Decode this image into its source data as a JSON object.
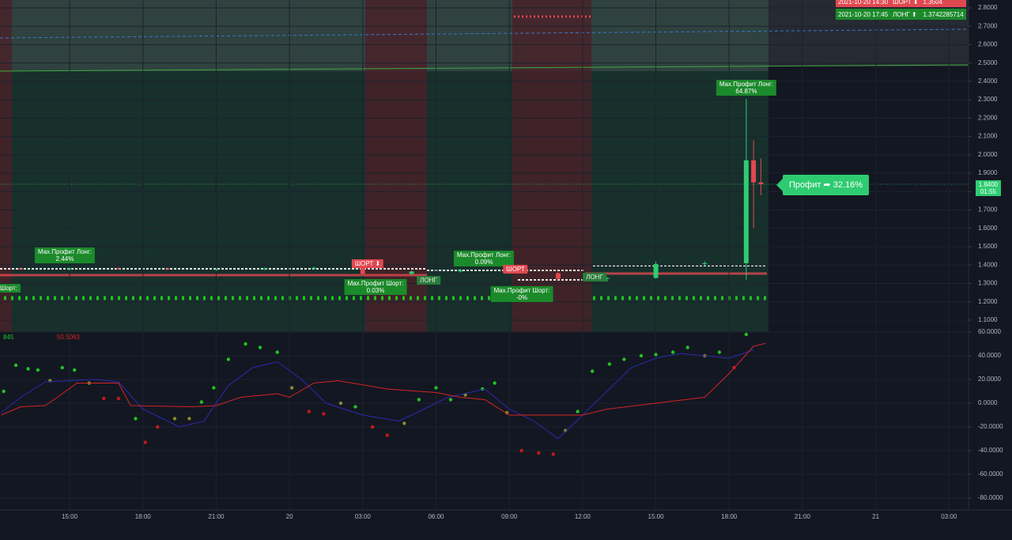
{
  "trades_table": {
    "rows": [
      [
        "2021-10-20 14:30",
        "ШОРТ ⬇",
        "1.3504"
      ],
      [
        "2021-10-20 17:45",
        "ЛОНГ ⬆",
        "1.3742285714"
      ]
    ]
  },
  "annotations": [
    {
      "lines": [
        "Max.Профит Лонг:",
        "2.44%"
      ]
    },
    {
      "lines": [
        "ШОРТ ⬇"
      ]
    },
    {
      "lines": [
        "Max.Профит Шорт:",
        "0.03%"
      ]
    },
    {
      "lines": [
        "ЛОНГ"
      ]
    },
    {
      "lines": [
        "Max.Профит Лонг:",
        "0.09%"
      ]
    },
    {
      "lines": [
        "ШОРТ"
      ]
    },
    {
      "lines": [
        "Max.Профит Шорт:",
        "-0%"
      ]
    },
    {
      "lines": [
        "ЛОНГ"
      ]
    },
    {
      "lines": [
        "Max.Профит Лонг:",
        "64.87%"
      ]
    },
    {
      "lines": [
        "Шорт:"
      ]
    }
  ],
  "profit_label": "Профит ➦ 32.16%",
  "price_tag": {
    "price": "1.8400",
    "countdown": "01:55"
  },
  "chart_data": [
    {
      "type": "candlestick",
      "x": [
        13,
        15,
        17,
        19,
        21,
        23,
        25,
        27,
        29,
        31,
        33,
        35,
        37,
        39,
        41,
        42.7,
        43.0,
        43.3
      ],
      "open": [
        1.38,
        1.378,
        1.382,
        1.38,
        1.376,
        1.378,
        1.383,
        1.385,
        1.352,
        1.365,
        1.372,
        1.355,
        1.325,
        1.33,
        1.405,
        1.41,
        1.97,
        1.85
      ],
      "high": [
        1.385,
        1.386,
        1.388,
        1.384,
        1.382,
        1.386,
        1.39,
        1.392,
        1.37,
        1.38,
        1.38,
        1.362,
        1.335,
        1.42,
        1.42,
        2.305,
        2.08,
        1.98
      ],
      "low": [
        1.372,
        1.37,
        1.376,
        1.372,
        1.368,
        1.372,
        1.376,
        1.34,
        1.345,
        1.36,
        1.35,
        1.318,
        1.31,
        1.325,
        1.395,
        1.32,
        1.6,
        1.78
      ],
      "close": [
        1.378,
        1.382,
        1.38,
        1.376,
        1.378,
        1.383,
        1.385,
        1.352,
        1.365,
        1.372,
        1.355,
        1.325,
        1.33,
        1.405,
        1.41,
        1.97,
        1.85,
        1.84
      ],
      "up_color": "#2ecc71",
      "down_color": "#e04850",
      "xlim": [
        12.15,
        51.8
      ],
      "ylim": [
        1.035,
        2.843
      ],
      "yticks": [
        {
          "value": 1.1,
          "label": "1.1000"
        },
        {
          "value": 1.2,
          "label": "1.2000"
        },
        {
          "value": 1.3,
          "label": "1.3000"
        },
        {
          "value": 1.4,
          "label": "1.4000"
        },
        {
          "value": 1.5,
          "label": "1.5000"
        },
        {
          "value": 1.6,
          "label": "1.6000"
        },
        {
          "value": 1.7,
          "label": "1.7000"
        },
        {
          "value": 1.8,
          "label": "1.8000"
        },
        {
          "value": 1.9,
          "label": "1.9000"
        },
        {
          "value": 2.0,
          "label": "2.0000"
        },
        {
          "value": 2.1,
          "label": "2.1000"
        },
        {
          "value": 2.2,
          "label": "2.2000"
        },
        {
          "value": 2.3,
          "label": "2.3000"
        },
        {
          "value": 2.4,
          "label": "2.4000"
        },
        {
          "value": 2.5,
          "label": "2.5000"
        },
        {
          "value": 2.6,
          "label": "2.6000"
        },
        {
          "value": 2.7,
          "label": "2.7000"
        },
        {
          "value": 2.8,
          "label": "2.8000"
        }
      ],
      "grid": true
    },
    {
      "type": "line",
      "xlim": [
        12.15,
        51.8
      ],
      "ylim": [
        -90,
        60
      ],
      "yticks": [
        {
          "value": 60,
          "label": "60.0000"
        },
        {
          "value": 40,
          "label": "40.0000"
        },
        {
          "value": 20,
          "label": "20.0000"
        },
        {
          "value": 0,
          "label": "0.0000"
        },
        {
          "value": -20,
          "label": "-20.0000"
        },
        {
          "value": -40,
          "label": "-40.0000"
        },
        {
          "value": -60,
          "label": "-60.0000"
        },
        {
          "value": -80,
          "label": "-80.0000"
        }
      ],
      "xticks": [
        {
          "value": 15,
          "label": "15:00"
        },
        {
          "value": 18,
          "label": "18:00"
        },
        {
          "value": 21,
          "label": "21:00"
        },
        {
          "value": 24,
          "label": "20"
        },
        {
          "value": 27,
          "label": "03:00"
        },
        {
          "value": 30,
          "label": "06:00"
        },
        {
          "value": 33,
          "label": "09:00"
        },
        {
          "value": 36,
          "label": "12:00"
        },
        {
          "value": 39,
          "label": "15:00"
        },
        {
          "value": 42,
          "label": "18:00"
        },
        {
          "value": 45,
          "label": "21:00"
        },
        {
          "value": 48,
          "label": "21"
        },
        {
          "value": 51,
          "label": "03:00"
        }
      ],
      "grid": true,
      "series": [
        {
          "name": "845",
          "color": "#22c322",
          "style": "dots",
          "x": [
            12.3,
            12.8,
            13.3,
            13.7,
            14.7,
            15.2,
            17.7,
            20.4,
            20.9,
            21.5,
            22.2,
            22.8,
            23.5,
            26.7,
            29.3,
            30.0,
            30.6,
            31.9,
            32.4,
            35.8,
            36.4,
            37.1,
            37.7,
            38.4,
            39.0,
            39.7,
            40.3,
            41.6,
            42.7
          ],
          "values": [
            10,
            32,
            29,
            28,
            30,
            28,
            -13,
            1,
            13,
            37,
            50,
            47,
            43,
            -3,
            3,
            13,
            3,
            12,
            17,
            -7,
            27,
            33,
            37,
            40,
            41,
            43,
            47,
            43,
            58
          ]
        },
        {
          "color": "#8a8a2a",
          "style": "dots",
          "x": [
            14.2,
            15.8,
            19.3,
            19.9,
            24.1,
            26.1,
            28.7,
            31.2,
            32.9,
            35.3,
            41.0
          ],
          "values": [
            19,
            17,
            -13,
            -13,
            13,
            0,
            -17,
            7,
            -8,
            -23,
            40
          ]
        },
        {
          "color": "#c41a1a",
          "style": "dots",
          "x": [
            16.4,
            17.0,
            18.1,
            18.6,
            24.8,
            25.4,
            27.4,
            28.0,
            33.5,
            34.2,
            34.8,
            42.2
          ],
          "values": [
            4,
            4,
            -33,
            -20,
            -7,
            -9,
            -20,
            -27,
            -40,
            -42,
            -43,
            30
          ]
        },
        {
          "color": "#2a2ab0",
          "style": "line",
          "x": [
            12.2,
            13,
            14,
            16,
            17,
            18,
            19.5,
            20.5,
            21.5,
            22.5,
            23.5,
            24.5,
            25.5,
            27,
            28.5,
            29.5,
            30.5,
            32,
            33,
            34,
            35,
            36,
            37,
            38,
            39,
            40,
            41,
            42,
            43
          ],
          "values": [
            -8,
            5,
            18,
            20,
            18,
            -5,
            -20,
            -15,
            15,
            30,
            35,
            20,
            0,
            -10,
            -15,
            -5,
            5,
            12,
            -5,
            -15,
            -30,
            -10,
            10,
            30,
            38,
            42,
            40,
            38,
            45
          ]
        },
        {
          "name": "50.5063",
          "color": "#d42424",
          "style": "line",
          "x": [
            12.2,
            13,
            14,
            14.5,
            15.3,
            17,
            17.5,
            20,
            21,
            22,
            23.5,
            24,
            25,
            26,
            28,
            30,
            31,
            32,
            33,
            36,
            37,
            39,
            41,
            42,
            43,
            43.5
          ],
          "values": [
            -10,
            -3,
            -2,
            5,
            17,
            17,
            -2,
            -3,
            -2,
            5,
            8,
            5,
            17,
            19,
            12,
            9,
            5,
            3,
            -10,
            -10,
            -5,
            0,
            5,
            25,
            48,
            50.5063
          ]
        }
      ]
    }
  ]
}
